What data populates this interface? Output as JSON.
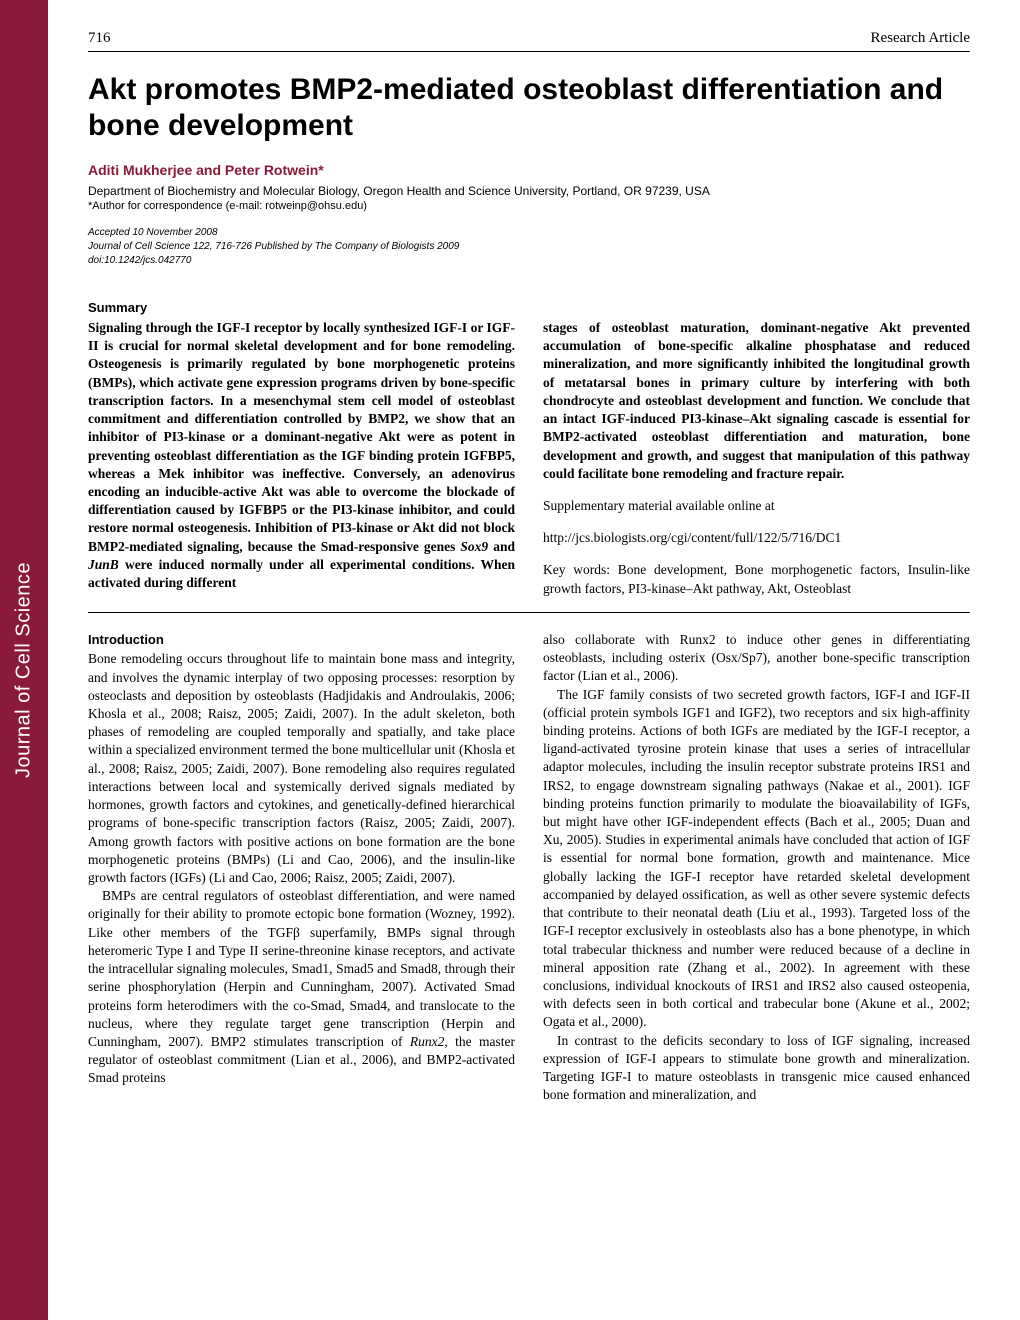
{
  "page_number": "716",
  "article_type": "Research Article",
  "journal_sidebar": "Journal of Cell Science",
  "title": "Akt promotes BMP2-mediated osteoblast differentiation and bone development",
  "authors": "Aditi Mukherjee and Peter Rotwein*",
  "affiliation": "Department of Biochemistry and Molecular Biology, Oregon Health and Science University, Portland, OR 97239, USA",
  "correspondence": "*Author for correspondence (e-mail: rotweinp@ohsu.edu)",
  "meta": {
    "accepted": "Accepted 10 November 2008",
    "citation": "Journal of Cell Science 122, 716-726 Published by The Company of Biologists 2009",
    "doi": "doi:10.1242/jcs.042770"
  },
  "summary_heading": "Summary",
  "summary": {
    "left": "Signaling through the IGF-I receptor by locally synthesized IGF-I or IGF-II is crucial for normal skeletal development and for bone remodeling. Osteogenesis is primarily regulated by bone morphogenetic proteins (BMPs), which activate gene expression programs driven by bone-specific transcription factors. In a mesenchymal stem cell model of osteoblast commitment and differentiation controlled by BMP2, we show that an inhibitor of PI3-kinase or a dominant-negative Akt were as potent in preventing osteoblast differentiation as the IGF binding protein IGFBP5, whereas a Mek inhibitor was ineffective. Conversely, an adenovirus encoding an inducible-active Akt was able to overcome the blockade of differentiation caused by IGFBP5 or the PI3-kinase inhibitor, and could restore normal osteogenesis. Inhibition of PI3-kinase or Akt did not block BMP2-mediated signaling, because the Smad-responsive genes Sox9 and JunB were induced normally under all experimental conditions. When activated during different",
    "right": "stages of osteoblast maturation, dominant-negative Akt prevented accumulation of bone-specific alkaline phosphatase and reduced mineralization, and more significantly inhibited the longitudinal growth of metatarsal bones in primary culture by interfering with both chondrocyte and osteoblast development and function. We conclude that an intact IGF-induced PI3-kinase–Akt signaling cascade is essential for BMP2-activated osteoblast differentiation and maturation, bone development and growth, and suggest that manipulation of this pathway could facilitate bone remodeling and fracture repair.",
    "supp_label": "Supplementary material available online at",
    "supp_url": "http://jcs.biologists.org/cgi/content/full/122/5/716/DC1",
    "keywords": "Key words: Bone development, Bone morphogenetic factors, Insulin-like growth factors, PI3-kinase–Akt pathway, Akt, Osteoblast"
  },
  "intro_heading": "Introduction",
  "body": {
    "left_p1": "Bone remodeling occurs throughout life to maintain bone mass and integrity, and involves the dynamic interplay of two opposing processes: resorption by osteoclasts and deposition by osteoblasts (Hadjidakis and Androulakis, 2006; Khosla et al., 2008; Raisz, 2005; Zaidi, 2007). In the adult skeleton, both phases of remodeling are coupled temporally and spatially, and take place within a specialized environment termed the bone multicellular unit (Khosla et al., 2008; Raisz, 2005; Zaidi, 2007). Bone remodeling also requires regulated interactions between local and systemically derived signals mediated by hormones, growth factors and cytokines, and genetically-defined hierarchical programs of bone-specific transcription factors (Raisz, 2005; Zaidi, 2007). Among growth factors with positive actions on bone formation are the bone morphogenetic proteins (BMPs) (Li and Cao, 2006), and the insulin-like growth factors (IGFs) (Li and Cao, 2006; Raisz, 2005; Zaidi, 2007).",
    "left_p2": "BMPs are central regulators of osteoblast differentiation, and were named originally for their ability to promote ectopic bone formation (Wozney, 1992). Like other members of the TGFβ superfamily, BMPs signal through heteromeric Type I and Type II serine-threonine kinase receptors, and activate the intracellular signaling molecules, Smad1, Smad5 and Smad8, through their serine phosphorylation (Herpin and Cunningham, 2007). Activated Smad proteins form heterodimers with the co-Smad, Smad4, and translocate to the nucleus, where they regulate target gene transcription (Herpin and Cunningham, 2007). BMP2 stimulates transcription of Runx2, the master regulator of osteoblast commitment (Lian et al., 2006), and BMP2-activated Smad proteins",
    "right_p1": "also collaborate with Runx2 to induce other genes in differentiating osteoblasts, including osterix (Osx/Sp7), another bone-specific transcription factor (Lian et al., 2006).",
    "right_p2": "The IGF family consists of two secreted growth factors, IGF-I and IGF-II (official protein symbols IGF1 and IGF2), two receptors and six high-affinity binding proteins. Actions of both IGFs are mediated by the IGF-I receptor, a ligand-activated tyrosine protein kinase that uses a series of intracellular adaptor molecules, including the insulin receptor substrate proteins IRS1 and IRS2, to engage downstream signaling pathways (Nakae et al., 2001). IGF binding proteins function primarily to modulate the bioavailability of IGFs, but might have other IGF-independent effects (Bach et al., 2005; Duan and Xu, 2005). Studies in experimental animals have concluded that action of IGF is essential for normal bone formation, growth and maintenance. Mice globally lacking the IGF-I receptor have retarded skeletal development accompanied by delayed ossification, as well as other severe systemic defects that contribute to their neonatal death (Liu et al., 1993). Targeted loss of the IGF-I receptor exclusively in osteoblasts also has a bone phenotype, in which total trabecular thickness and number were reduced because of a decline in mineral apposition rate (Zhang et al., 2002). In agreement with these conclusions, individual knockouts of IRS1 and IRS2 also caused osteopenia, with defects seen in both cortical and trabecular bone (Akune et al., 2002; Ogata et al., 2000).",
    "right_p3": "In contrast to the deficits secondary to loss of IGF signaling, increased expression of IGF-I appears to stimulate bone growth and mineralization. Targeting IGF-I to mature osteoblasts in transgenic mice caused enhanced bone formation and mineralization, and"
  },
  "colors": {
    "sidebar_bg": "#8b1a3a",
    "author_color": "#8b1a3a",
    "text_color": "#000000",
    "bg_color": "#ffffff"
  }
}
